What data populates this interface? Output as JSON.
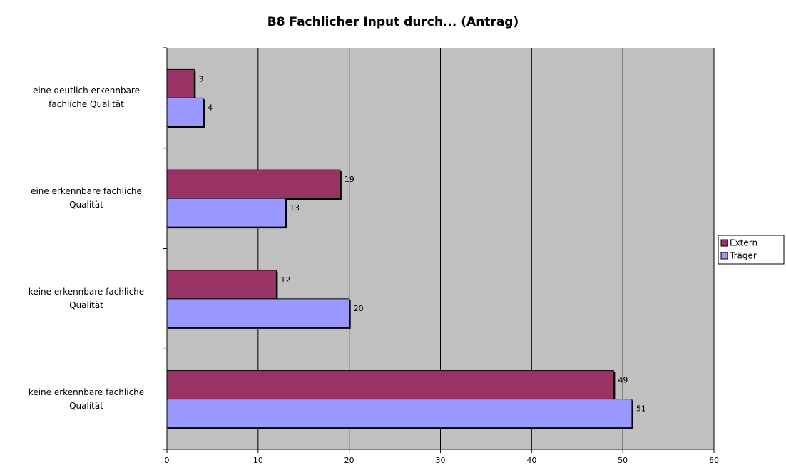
{
  "chart_data": {
    "type": "bar",
    "orientation": "horizontal",
    "title": "B8 Fachlicher Input durch... (Antrag)",
    "categories": [
      "eine deutlich erkennbare fachliche Qualität",
      "eine erkennbare fachliche Qualität",
      "keine erkennbare fachliche Qualität",
      "keine erkennbare fachliche Qualität"
    ],
    "series": [
      {
        "name": "Extern",
        "color": "#993366",
        "values": [
          3,
          19,
          12,
          49
        ]
      },
      {
        "name": "Träger",
        "color": "#9999ff",
        "values": [
          4,
          13,
          20,
          51
        ]
      }
    ],
    "xlim": [
      0,
      60
    ],
    "xticks": [
      0,
      10,
      20,
      30,
      40,
      50,
      60
    ],
    "grid": true,
    "legend": "right"
  }
}
